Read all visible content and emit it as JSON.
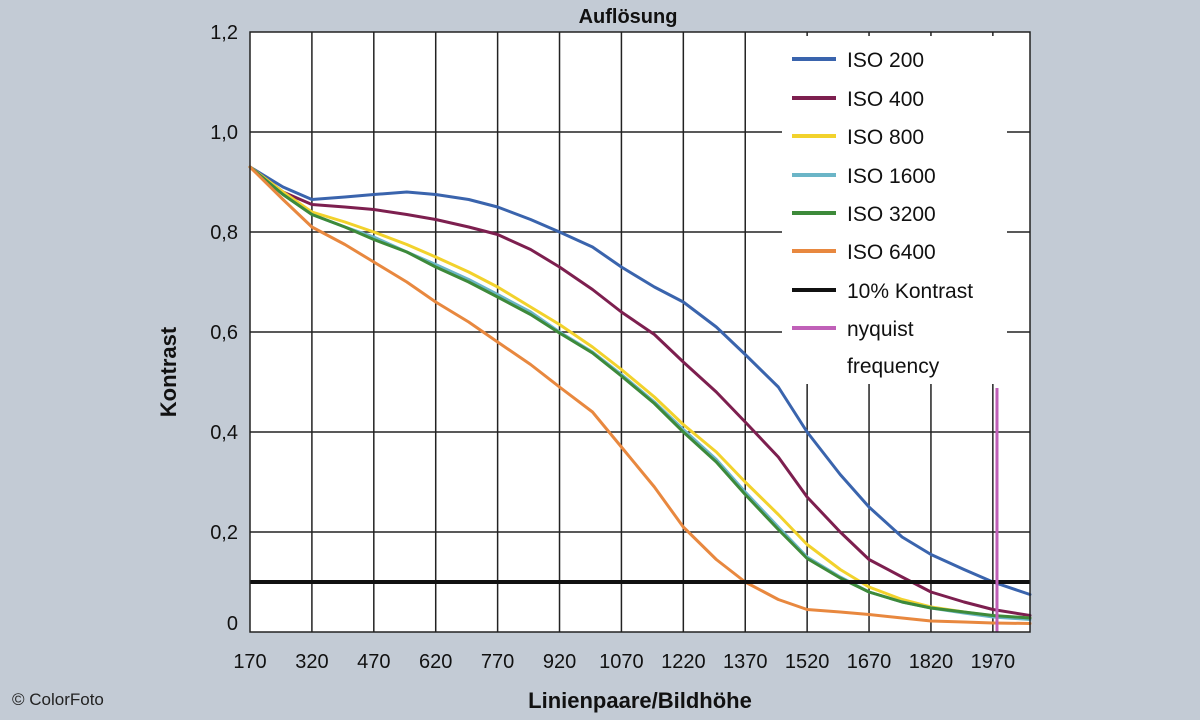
{
  "chart_data": {
    "type": "line",
    "title": "Auflösung",
    "xlabel": "Linienpaare/Bildhöhe",
    "ylabel": "Kontrast",
    "xlim": [
      170,
      2060
    ],
    "ylim": [
      0,
      1.2
    ],
    "x_ticks": [
      170,
      320,
      470,
      620,
      770,
      920,
      1070,
      1220,
      1370,
      1520,
      1670,
      1820,
      1970
    ],
    "x_tick_labels": [
      "170",
      "320",
      "470",
      "620",
      "770",
      "920",
      "1070",
      "1220",
      "1370",
      "1520",
      "1670",
      "1820",
      "1970"
    ],
    "y_ticks": [
      0,
      0.2,
      0.4,
      0.6,
      0.8,
      1.0,
      1.2
    ],
    "y_tick_labels": [
      "0",
      "0,2",
      "0,4",
      "0,6",
      "0,8",
      "1,0",
      "1,2"
    ],
    "grid": true,
    "legend_position": "top-right",
    "series": [
      {
        "name": "ISO 200",
        "color": "#3a64ad",
        "points": [
          [
            170,
            0.93
          ],
          [
            250,
            0.89
          ],
          [
            320,
            0.865
          ],
          [
            400,
            0.87
          ],
          [
            470,
            0.875
          ],
          [
            550,
            0.88
          ],
          [
            620,
            0.875
          ],
          [
            700,
            0.865
          ],
          [
            770,
            0.85
          ],
          [
            850,
            0.825
          ],
          [
            920,
            0.8
          ],
          [
            1000,
            0.77
          ],
          [
            1070,
            0.73
          ],
          [
            1150,
            0.69
          ],
          [
            1220,
            0.66
          ],
          [
            1300,
            0.61
          ],
          [
            1370,
            0.555
          ],
          [
            1450,
            0.49
          ],
          [
            1520,
            0.4
          ],
          [
            1600,
            0.315
          ],
          [
            1670,
            0.25
          ],
          [
            1750,
            0.19
          ],
          [
            1820,
            0.155
          ],
          [
            1900,
            0.125
          ],
          [
            1970,
            0.1
          ],
          [
            2060,
            0.075
          ]
        ]
      },
      {
        "name": "ISO 400",
        "color": "#7d1f4f",
        "points": [
          [
            170,
            0.93
          ],
          [
            250,
            0.88
          ],
          [
            320,
            0.855
          ],
          [
            400,
            0.85
          ],
          [
            470,
            0.845
          ],
          [
            550,
            0.835
          ],
          [
            620,
            0.825
          ],
          [
            700,
            0.81
          ],
          [
            770,
            0.795
          ],
          [
            850,
            0.765
          ],
          [
            920,
            0.73
          ],
          [
            1000,
            0.685
          ],
          [
            1070,
            0.64
          ],
          [
            1150,
            0.595
          ],
          [
            1220,
            0.54
          ],
          [
            1300,
            0.48
          ],
          [
            1370,
            0.42
          ],
          [
            1450,
            0.35
          ],
          [
            1520,
            0.27
          ],
          [
            1600,
            0.2
          ],
          [
            1670,
            0.145
          ],
          [
            1750,
            0.11
          ],
          [
            1820,
            0.08
          ],
          [
            1900,
            0.06
          ],
          [
            1970,
            0.045
          ],
          [
            2060,
            0.033
          ]
        ]
      },
      {
        "name": "ISO 800",
        "color": "#f2d22c",
        "points": [
          [
            170,
            0.93
          ],
          [
            250,
            0.88
          ],
          [
            320,
            0.84
          ],
          [
            400,
            0.82
          ],
          [
            470,
            0.8
          ],
          [
            550,
            0.775
          ],
          [
            620,
            0.75
          ],
          [
            700,
            0.72
          ],
          [
            770,
            0.69
          ],
          [
            850,
            0.65
          ],
          [
            920,
            0.615
          ],
          [
            1000,
            0.57
          ],
          [
            1070,
            0.525
          ],
          [
            1150,
            0.47
          ],
          [
            1220,
            0.415
          ],
          [
            1300,
            0.36
          ],
          [
            1370,
            0.3
          ],
          [
            1450,
            0.235
          ],
          [
            1520,
            0.175
          ],
          [
            1600,
            0.125
          ],
          [
            1670,
            0.09
          ],
          [
            1750,
            0.065
          ],
          [
            1820,
            0.05
          ],
          [
            1900,
            0.04
          ],
          [
            1970,
            0.032
          ],
          [
            2060,
            0.028
          ]
        ]
      },
      {
        "name": "ISO 1600",
        "color": "#6bb5c7",
        "points": [
          [
            170,
            0.93
          ],
          [
            250,
            0.875
          ],
          [
            320,
            0.835
          ],
          [
            400,
            0.81
          ],
          [
            470,
            0.79
          ],
          [
            550,
            0.76
          ],
          [
            620,
            0.735
          ],
          [
            700,
            0.705
          ],
          [
            770,
            0.675
          ],
          [
            850,
            0.64
          ],
          [
            920,
            0.6
          ],
          [
            1000,
            0.56
          ],
          [
            1070,
            0.515
          ],
          [
            1150,
            0.46
          ],
          [
            1220,
            0.405
          ],
          [
            1300,
            0.345
          ],
          [
            1370,
            0.28
          ],
          [
            1450,
            0.21
          ],
          [
            1520,
            0.15
          ],
          [
            1600,
            0.11
          ],
          [
            1670,
            0.08
          ],
          [
            1750,
            0.06
          ],
          [
            1820,
            0.048
          ],
          [
            1900,
            0.038
          ],
          [
            1970,
            0.03
          ],
          [
            2060,
            0.025
          ]
        ]
      },
      {
        "name": "ISO 3200",
        "color": "#3d8a3a",
        "points": [
          [
            170,
            0.93
          ],
          [
            250,
            0.875
          ],
          [
            320,
            0.835
          ],
          [
            400,
            0.81
          ],
          [
            470,
            0.785
          ],
          [
            550,
            0.76
          ],
          [
            620,
            0.73
          ],
          [
            700,
            0.7
          ],
          [
            770,
            0.67
          ],
          [
            850,
            0.635
          ],
          [
            920,
            0.598
          ],
          [
            1000,
            0.558
          ],
          [
            1070,
            0.512
          ],
          [
            1150,
            0.457
          ],
          [
            1220,
            0.4
          ],
          [
            1300,
            0.34
          ],
          [
            1370,
            0.275
          ],
          [
            1450,
            0.205
          ],
          [
            1520,
            0.147
          ],
          [
            1600,
            0.108
          ],
          [
            1670,
            0.08
          ],
          [
            1750,
            0.06
          ],
          [
            1820,
            0.048
          ],
          [
            1900,
            0.04
          ],
          [
            1970,
            0.033
          ],
          [
            2060,
            0.028
          ]
        ]
      },
      {
        "name": "ISO 6400",
        "color": "#e8883f",
        "points": [
          [
            170,
            0.93
          ],
          [
            250,
            0.865
          ],
          [
            320,
            0.81
          ],
          [
            400,
            0.775
          ],
          [
            470,
            0.74
          ],
          [
            550,
            0.7
          ],
          [
            620,
            0.66
          ],
          [
            700,
            0.62
          ],
          [
            770,
            0.58
          ],
          [
            850,
            0.535
          ],
          [
            920,
            0.49
          ],
          [
            1000,
            0.44
          ],
          [
            1070,
            0.37
          ],
          [
            1150,
            0.29
          ],
          [
            1220,
            0.21
          ],
          [
            1300,
            0.145
          ],
          [
            1370,
            0.1
          ],
          [
            1450,
            0.065
          ],
          [
            1520,
            0.045
          ],
          [
            1600,
            0.04
          ],
          [
            1670,
            0.035
          ],
          [
            1750,
            0.028
          ],
          [
            1820,
            0.022
          ],
          [
            1900,
            0.02
          ],
          [
            1970,
            0.018
          ],
          [
            2060,
            0.017
          ]
        ]
      }
    ],
    "reference_lines": [
      {
        "name": "10% Kontrast",
        "orientation": "horizontal",
        "value": 0.1,
        "color": "#111111"
      },
      {
        "name": "nyquist frequency",
        "orientation": "vertical",
        "value": 1980,
        "color": "#c060b8"
      }
    ],
    "legend_entries": [
      {
        "label": "ISO 200",
        "color": "#3a64ad"
      },
      {
        "label": "ISO 400",
        "color": "#7d1f4f"
      },
      {
        "label": "ISO 800",
        "color": "#f2d22c"
      },
      {
        "label": "ISO 1600",
        "color": "#6bb5c7"
      },
      {
        "label": "ISO 3200",
        "color": "#3d8a3a"
      },
      {
        "label": "ISO 6400",
        "color": "#e8883f"
      },
      {
        "label": "10% Kontrast",
        "color": "#111111"
      },
      {
        "label": "nyquist\nfrequency",
        "color": "#c060b8"
      }
    ]
  },
  "credit": "© ColorFoto"
}
